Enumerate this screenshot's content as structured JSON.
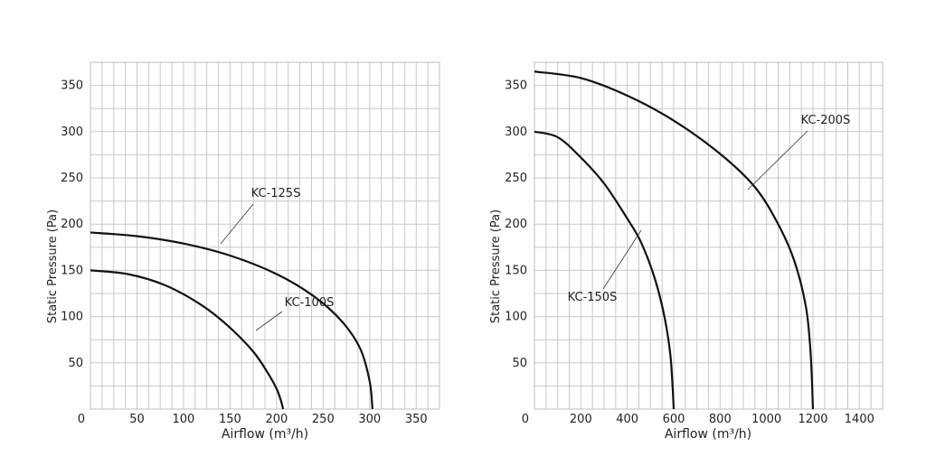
{
  "chart_data": [
    {
      "type": "line",
      "xlabel": "Airflow (m³/h)",
      "ylabel": "Static Pressure (Pa)",
      "xlim": [
        0,
        375
      ],
      "ylim": [
        0,
        375
      ],
      "x_ticks": [
        0,
        50,
        100,
        150,
        200,
        250,
        300,
        350
      ],
      "y_ticks": [
        50,
        100,
        150,
        200,
        250,
        300,
        350
      ],
      "grid": true,
      "series": [
        {
          "name": "KC-100S",
          "x": [
            0,
            40,
            80,
            120,
            150,
            175,
            190,
            200,
            205,
            207
          ],
          "y": [
            150,
            146,
            134,
            112,
            88,
            62,
            40,
            22,
            8,
            0
          ]
        },
        {
          "name": "KC-125S",
          "x": [
            0,
            50,
            100,
            150,
            200,
            240,
            270,
            290,
            300,
            303
          ],
          "y": [
            191,
            187,
            179,
            166,
            146,
            122,
            95,
            65,
            30,
            0
          ]
        }
      ]
    },
    {
      "type": "line",
      "xlabel": "Airflow (m³/h)",
      "ylabel": "Static Pressure (Pa)",
      "xlim": [
        0,
        1500
      ],
      "ylim": [
        0,
        375
      ],
      "x_ticks": [
        0,
        200,
        400,
        600,
        800,
        1000,
        1200,
        1400
      ],
      "y_ticks": [
        50,
        100,
        150,
        200,
        250,
        300,
        350
      ],
      "grid": true,
      "series": [
        {
          "name": "KC-150S",
          "x": [
            0,
            100,
            200,
            300,
            400,
            460,
            520,
            560,
            585,
            595,
            600
          ],
          "y": [
            300,
            294,
            272,
            244,
            206,
            180,
            140,
            100,
            60,
            25,
            0
          ]
        },
        {
          "name": "KC-200S",
          "x": [
            0,
            200,
            400,
            600,
            800,
            950,
            1050,
            1120,
            1170,
            1190,
            1200
          ],
          "y": [
            365,
            358,
            339,
            312,
            276,
            240,
            200,
            160,
            110,
            60,
            0
          ]
        }
      ]
    }
  ]
}
